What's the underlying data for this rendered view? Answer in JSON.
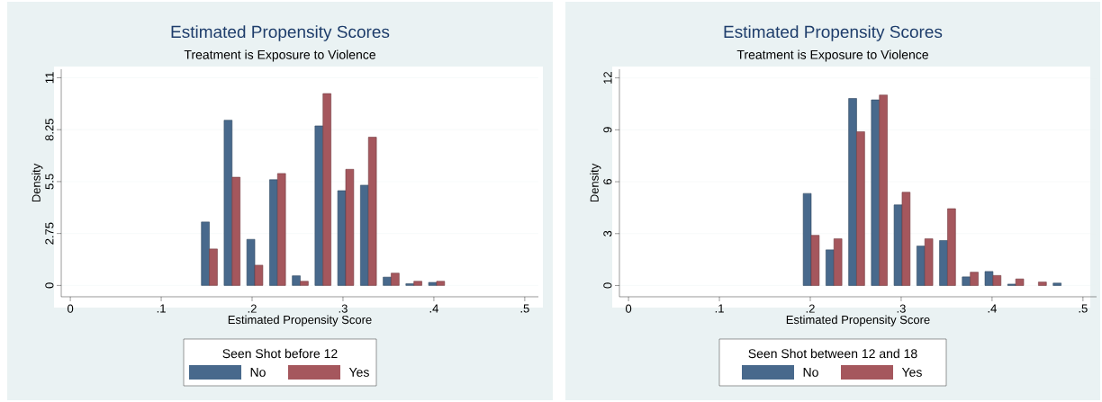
{
  "chart_data": [
    {
      "type": "bar",
      "title": "Estimated Propensity Scores",
      "subtitle": "Treatment is Exposure to Violence",
      "xlabel": "Estimated Propensity Score",
      "ylabel": "Density",
      "legend_title": "Seen Shot before 12",
      "legend": "bottom",
      "grid": "y",
      "x": [
        0.153,
        0.178,
        0.203,
        0.228,
        0.253,
        0.278,
        0.303,
        0.328,
        0.353,
        0.378,
        0.403
      ],
      "series": [
        {
          "name": "No",
          "color": "#48698c",
          "values": [
            3.36,
            8.75,
            2.44,
            5.6,
            0.51,
            8.45,
            5.02,
            5.31,
            0.44,
            0.09,
            0.16
          ]
        },
        {
          "name": "Yes",
          "color": "#a5575d",
          "values": [
            1.93,
            5.73,
            1.07,
            5.93,
            0.22,
            10.16,
            6.15,
            7.85,
            0.65,
            0.22,
            0.22
          ]
        }
      ],
      "xlim": [
        -0.01,
        0.515
      ],
      "ylim": [
        -0.6,
        11.45
      ],
      "xticks": [
        0,
        {
          "value": 0.1,
          "label": ".1"
        },
        {
          "value": 0.2,
          "label": ".2"
        },
        {
          "value": 0.3,
          "label": ".3"
        },
        {
          "value": 0.4,
          "label": ".4"
        },
        {
          "value": 0.5,
          "label": ".5"
        }
      ],
      "yticks": [
        0,
        2.75,
        5.5,
        8.25,
        11
      ]
    },
    {
      "type": "bar",
      "title": "Estimated Propensity Scores",
      "subtitle": "Treatment is Exposure to Violence",
      "xlabel": "Estimated Propensity Score",
      "ylabel": "Density",
      "legend_title": "Seen Shot between 12 and 18",
      "legend": "bottom",
      "grid": "y",
      "x": [
        0.201,
        0.226,
        0.251,
        0.276,
        0.301,
        0.326,
        0.351,
        0.376,
        0.401,
        0.426,
        0.451,
        0.476
      ],
      "series": [
        {
          "name": "No",
          "color": "#48698c",
          "values": [
            5.32,
            2.06,
            10.81,
            10.73,
            4.66,
            2.28,
            2.6,
            0.5,
            0.81,
            0.08,
            null,
            0.14
          ]
        },
        {
          "name": "Yes",
          "color": "#a5575d",
          "values": [
            2.9,
            2.7,
            8.89,
            11.01,
            5.39,
            2.7,
            4.44,
            0.77,
            0.58,
            0.38,
            0.2,
            null
          ]
        }
      ],
      "xlim": [
        -0.01,
        0.515
      ],
      "ylim": [
        -0.65,
        12.5
      ],
      "xticks": [
        0,
        {
          "value": 0.1,
          "label": ".1"
        },
        {
          "value": 0.2,
          "label": ".2"
        },
        {
          "value": 0.3,
          "label": ".3"
        },
        {
          "value": 0.4,
          "label": ".4"
        },
        {
          "value": 0.5,
          "label": ".5"
        }
      ],
      "yticks": [
        0,
        3,
        6,
        9,
        12
      ]
    }
  ]
}
